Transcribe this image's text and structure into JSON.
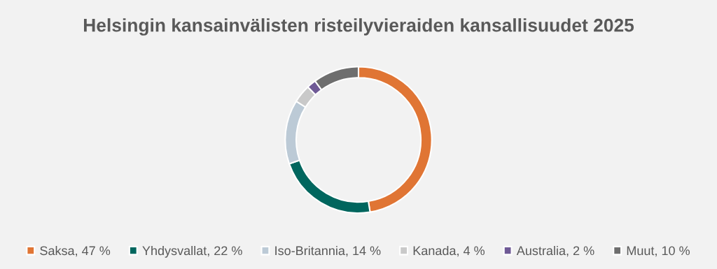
{
  "chart_data": {
    "type": "donut",
    "title": "Helsingin kansainvälisten risteilyvieraiden kansallisuudet 2025",
    "categories": [
      "Saksa, 47 %",
      "Yhdysvallat, 22 %",
      "Iso-Britannia, 14 %",
      "Kanada, 4 %",
      "Australia, 2 %",
      "Muut, 10 %"
    ],
    "values": [
      47,
      22,
      14,
      4,
      2,
      10
    ],
    "colors": [
      "#e07534",
      "#00665e",
      "#bccad6",
      "#c9c9c9",
      "#6f5a96",
      "#6e6e6e"
    ],
    "legend": "bottom"
  }
}
